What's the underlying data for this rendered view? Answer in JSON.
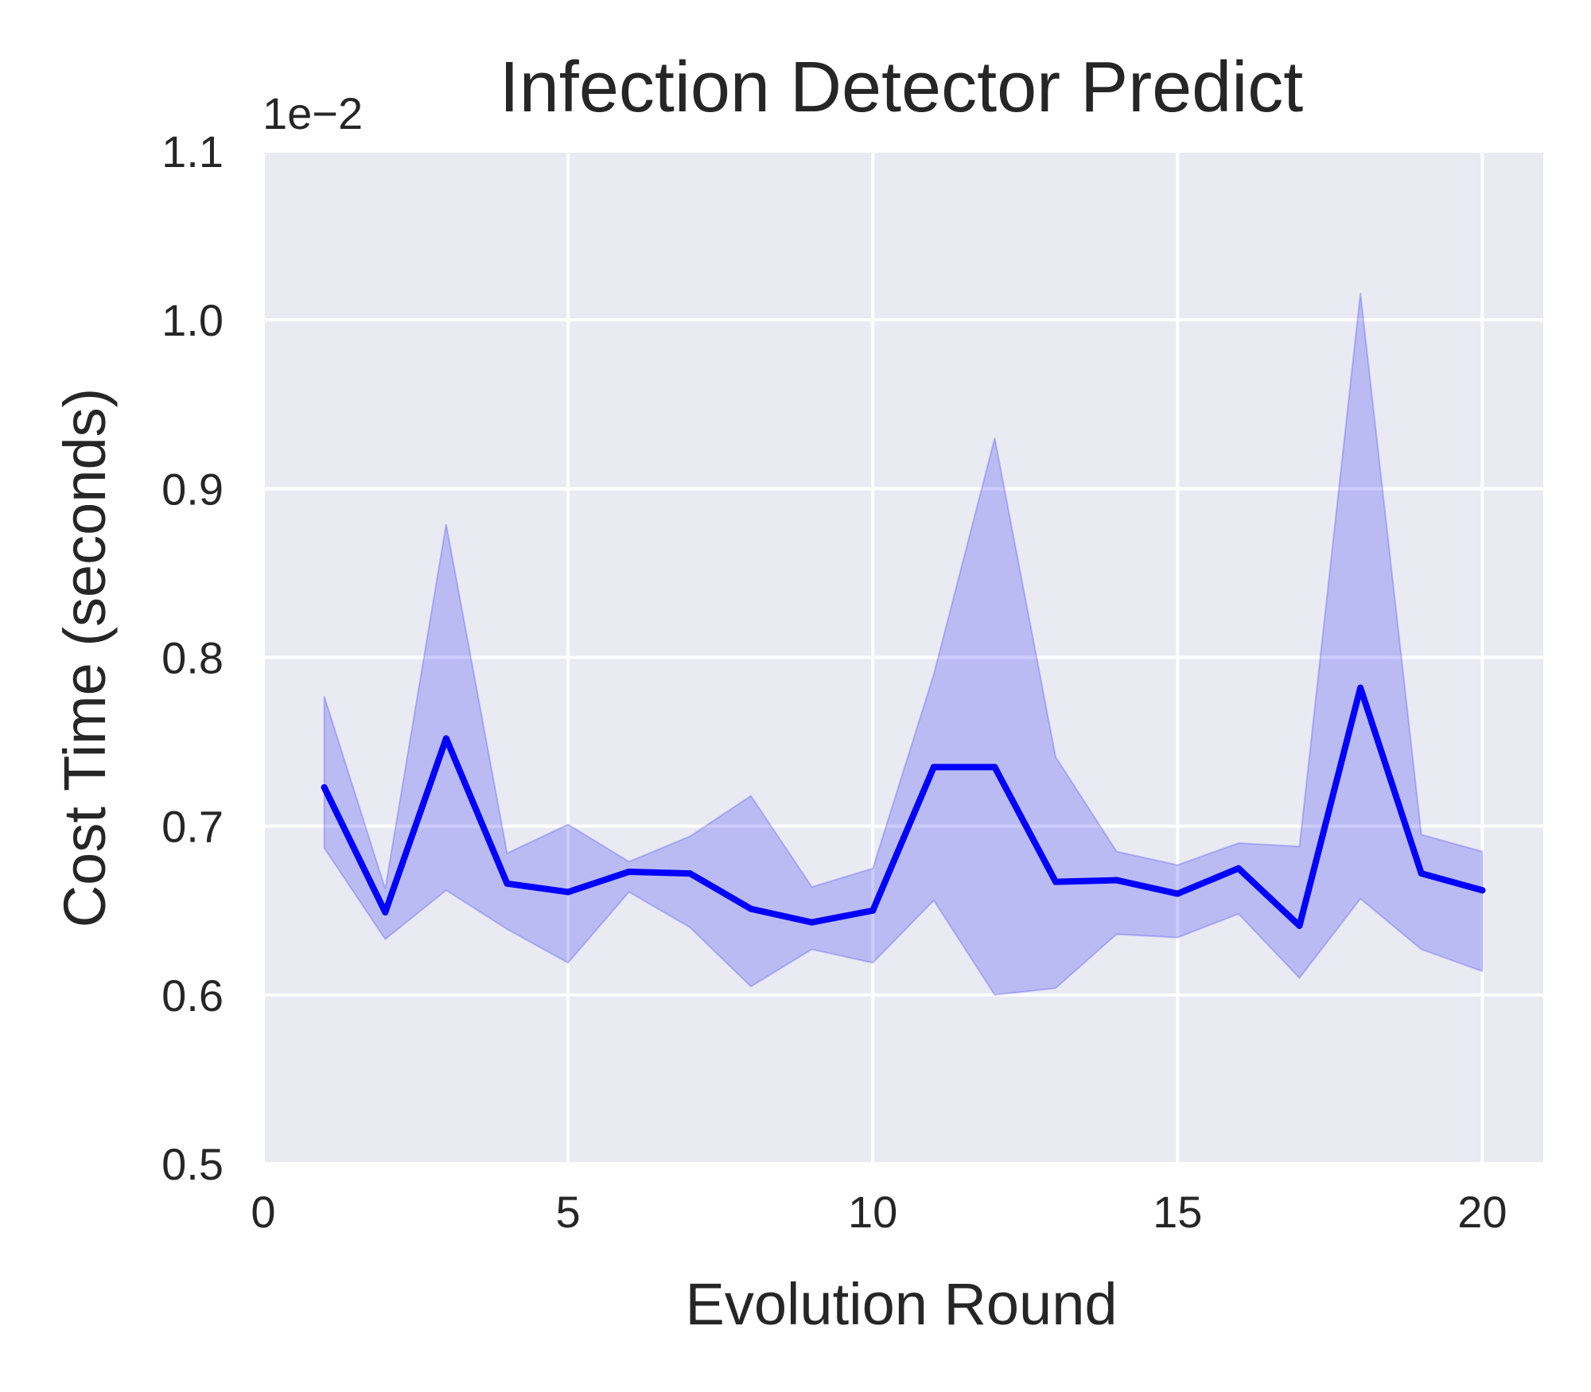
{
  "chart_data": {
    "type": "line",
    "title": "Infection Detector Predict",
    "xlabel": "Evolution Round",
    "ylabel": "Cost Time (seconds)",
    "y_offset_label": "1e−2",
    "xlim": [
      0,
      21
    ],
    "ylim": [
      0.5,
      1.1
    ],
    "x_ticks": [
      0,
      5,
      10,
      15,
      20
    ],
    "y_ticks": [
      0.5,
      0.6,
      0.7,
      0.8,
      0.9,
      1.0,
      1.1
    ],
    "y_tick_labels": [
      "0.5",
      "0.6",
      "0.7",
      "0.8",
      "0.9",
      "1.0",
      "1.1"
    ],
    "grid": true,
    "background": "#eaeaf2",
    "series": [
      {
        "color": "#0000ff",
        "band_color": "#0000ff",
        "x": [
          1,
          2,
          3,
          4,
          5,
          6,
          7,
          8,
          9,
          10,
          11,
          12,
          13,
          14,
          15,
          16,
          17,
          18,
          19,
          20
        ],
        "mean": [
          0.723,
          0.649,
          0.752,
          0.666,
          0.661,
          0.673,
          0.672,
          0.651,
          0.643,
          0.65,
          0.735,
          0.735,
          0.667,
          0.668,
          0.66,
          0.675,
          0.641,
          0.782,
          0.672,
          0.662
        ],
        "upper": [
          0.777,
          0.663,
          0.879,
          0.684,
          0.701,
          0.679,
          0.694,
          0.718,
          0.664,
          0.675,
          0.79,
          0.93,
          0.741,
          0.685,
          0.677,
          0.69,
          0.688,
          1.016,
          0.695,
          0.685
        ],
        "lower": [
          0.687,
          0.633,
          0.662,
          0.639,
          0.619,
          0.661,
          0.64,
          0.605,
          0.627,
          0.619,
          0.656,
          0.6,
          0.604,
          0.636,
          0.634,
          0.648,
          0.61,
          0.657,
          0.627,
          0.614
        ]
      }
    ]
  }
}
